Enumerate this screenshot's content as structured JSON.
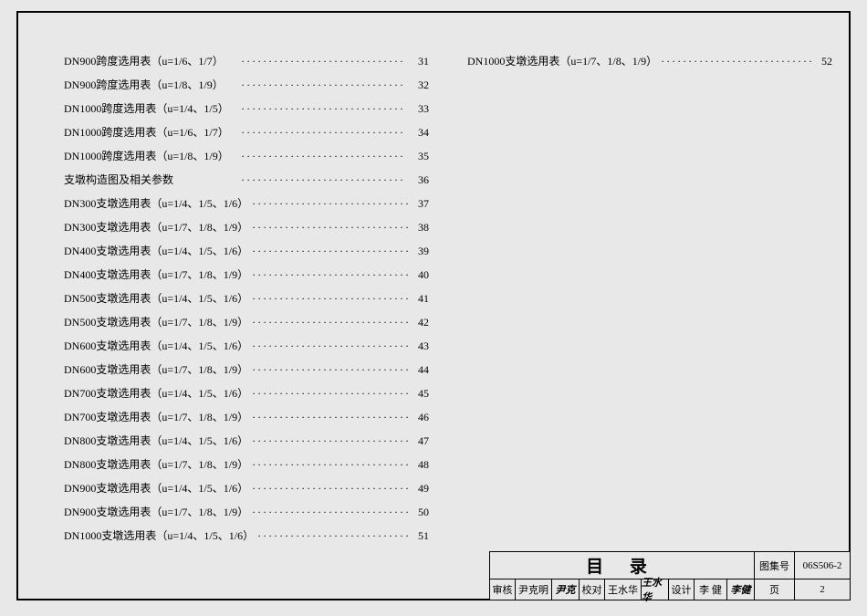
{
  "toc": {
    "left": [
      {
        "title": "DN900跨度选用表（u=1/6、1/7）",
        "page": "31"
      },
      {
        "title": "DN900跨度选用表（u=1/8、1/9）",
        "page": "32"
      },
      {
        "title": "DN1000跨度选用表（u=1/4、1/5）",
        "page": "33"
      },
      {
        "title": "DN1000跨度选用表（u=1/6、1/7）",
        "page": "34"
      },
      {
        "title": "DN1000跨度选用表（u=1/8、1/9）",
        "page": "35"
      },
      {
        "title": "支墩构造图及相关参数",
        "page": "36"
      },
      {
        "title": "DN300支墩选用表（u=1/4、1/5、1/6）",
        "page": "37"
      },
      {
        "title": "DN300支墩选用表（u=1/7、1/8、1/9）",
        "page": "38"
      },
      {
        "title": "DN400支墩选用表（u=1/4、1/5、1/6）",
        "page": "39"
      },
      {
        "title": "DN400支墩选用表（u=1/7、1/8、1/9）",
        "page": "40"
      },
      {
        "title": "DN500支墩选用表（u=1/4、1/5、1/6）",
        "page": "41"
      },
      {
        "title": "DN500支墩选用表（u=1/7、1/8、1/9）",
        "page": "42"
      },
      {
        "title": "DN600支墩选用表（u=1/4、1/5、1/6）",
        "page": "43"
      },
      {
        "title": "DN600支墩选用表（u=1/7、1/8、1/9）",
        "page": "44"
      },
      {
        "title": "DN700支墩选用表（u=1/4、1/5、1/6）",
        "page": "45"
      },
      {
        "title": "DN700支墩选用表（u=1/7、1/8、1/9）",
        "page": "46"
      },
      {
        "title": "DN800支墩选用表（u=1/4、1/5、1/6）",
        "page": "47"
      },
      {
        "title": "DN800支墩选用表（u=1/7、1/8、1/9）",
        "page": "48"
      },
      {
        "title": "DN900支墩选用表（u=1/4、1/5、1/6）",
        "page": "49"
      },
      {
        "title": "DN900支墩选用表（u=1/7、1/8、1/9）",
        "page": "50"
      },
      {
        "title": "DN1000支墩选用表（u=1/4、1/5、1/6）",
        "page": "51"
      }
    ],
    "right": [
      {
        "title": "DN1000支墩选用表（u=1/7、1/8、1/9）",
        "page": "52"
      }
    ]
  },
  "titleBlock": {
    "mainTitle": "目 录",
    "drawingSetLabel": "图集号",
    "drawingSetValue": "06S506-2",
    "pageLabel": "页",
    "pageValue": "2",
    "row2": {
      "reviewLabel": "审核",
      "reviewName": "尹克明",
      "reviewSig": "尹克",
      "checkLabel": "校对",
      "checkName": "王水华",
      "checkSig": "王水华",
      "designLabel": "设计",
      "designName": "李 健",
      "designSig": "李健"
    }
  },
  "leader": "······························"
}
